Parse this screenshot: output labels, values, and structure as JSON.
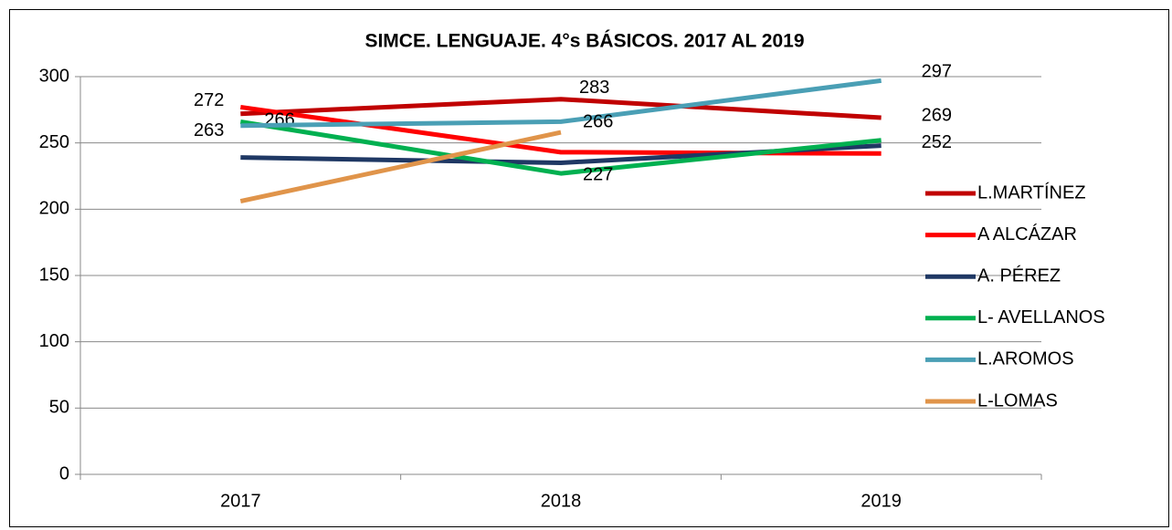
{
  "chart_data": {
    "type": "line",
    "title": "SIMCE. LENGUAJE. 4°s BÁSICOS. 2017 AL 2019",
    "categories": [
      "2017",
      "2018",
      "2019"
    ],
    "ylim": [
      0,
      300
    ],
    "yticks": [
      0,
      50,
      100,
      150,
      200,
      250,
      300
    ],
    "grid": true,
    "legend": "right",
    "series": [
      {
        "name": "L.MARTÍNEZ",
        "color": "#c00000",
        "values": [
          272,
          283,
          269
        ],
        "show_labels": true
      },
      {
        "name": "A ALCÁZAR",
        "color": "#ff0000",
        "values": [
          277,
          243,
          242
        ],
        "show_labels": false
      },
      {
        "name": "A. PÉREZ",
        "color": "#1f3864",
        "values": [
          239,
          235,
          248
        ],
        "show_labels": false
      },
      {
        "name": "L- AVELLANOS",
        "color": "#00b050",
        "values": [
          266,
          227,
          252
        ],
        "show_labels": true
      },
      {
        "name": "L.AROMOS",
        "color": "#4a9fb5",
        "values": [
          263,
          266,
          297
        ],
        "show_labels": true
      },
      {
        "name": "L-LOMAS",
        "color": "#e0944a",
        "values": [
          206,
          258,
          null
        ],
        "show_labels": false
      }
    ]
  }
}
